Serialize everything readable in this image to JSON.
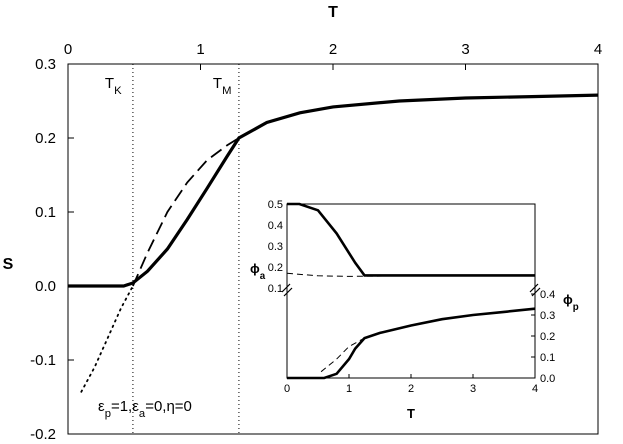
{
  "chart_data": [
    {
      "type": "line",
      "xlabel": "T",
      "ylabel": "S",
      "xlim": [
        0,
        4
      ],
      "ylim": [
        -0.2,
        0.3
      ],
      "x_ticks": [
        "0",
        "1",
        "2",
        "3",
        "4"
      ],
      "y_ticks": [
        "-0.2",
        "-0.1",
        "0.0",
        "0.1",
        "0.2",
        "0.3"
      ],
      "x_axis_position": "top",
      "grid": false,
      "markers": [
        {
          "label": "T",
          "subscript": "K",
          "x": 0.49
        },
        {
          "label": "T",
          "subscript": "M",
          "x": 1.29
        }
      ],
      "annotation": {
        "parts": [
          {
            "t": "ε",
            "sub": "p"
          },
          {
            "t": "=1,"
          },
          {
            "t": "ε",
            "sub": "a"
          },
          {
            "t": "=0,η=0"
          }
        ]
      },
      "series": [
        {
          "style": "solid-thick",
          "x": [
            0,
            0.2,
            0.42,
            0.49,
            0.6,
            0.75,
            0.9,
            1.05,
            1.2,
            1.29,
            1.5,
            1.75,
            2.0,
            2.5,
            3.0,
            3.5,
            4.0
          ],
          "y": [
            0.0,
            0.0,
            0.0,
            0.004,
            0.02,
            0.05,
            0.09,
            0.132,
            0.175,
            0.2,
            0.221,
            0.234,
            0.242,
            0.25,
            0.254,
            0.256,
            0.258
          ]
        },
        {
          "style": "dashed",
          "x": [
            0.49,
            0.6,
            0.75,
            0.9,
            1.05,
            1.2,
            1.29
          ],
          "y": [
            0.0,
            0.045,
            0.1,
            0.14,
            0.17,
            0.19,
            0.2
          ]
        },
        {
          "style": "dotted",
          "x": [
            0.1,
            0.2,
            0.3,
            0.4,
            0.49
          ],
          "y": [
            -0.143,
            -0.11,
            -0.07,
            -0.03,
            0.0
          ]
        }
      ]
    },
    {
      "type": "line",
      "xlabel": "T",
      "ylabel_top": {
        "t": "ϕ",
        "sub": "a"
      },
      "ylabel_bottom": {
        "t": "ϕ",
        "sub": "p"
      },
      "xlim": [
        0,
        4
      ],
      "x_ticks": [
        "0",
        "1",
        "2",
        "3",
        "4"
      ],
      "top_panel": {
        "ylim": [
          0.1,
          0.5
        ],
        "y_ticks": [
          "0.1",
          "0.2",
          "0.3",
          "0.4",
          "0.5"
        ],
        "series": [
          {
            "style": "solid-thick",
            "x": [
              0,
              0.2,
              0.5,
              0.8,
              1.1,
              1.25,
              2.0,
              3.0,
              4.0
            ],
            "y": [
              0.5,
              0.5,
              0.47,
              0.36,
              0.22,
              0.16,
              0.16,
              0.16,
              0.16
            ]
          },
          {
            "style": "dashed",
            "x": [
              0,
              0.5,
              1.0,
              1.25,
              2.0,
              4.0
            ],
            "y": [
              0.17,
              0.158,
              0.155,
              0.156,
              0.158,
              0.16
            ]
          }
        ]
      },
      "bottom_panel": {
        "ylim": [
          0,
          0.4
        ],
        "y_ticks": [
          "0.0",
          "0.1",
          "0.2",
          "0.3",
          "0.4"
        ],
        "y_axis_position": "right",
        "series": [
          {
            "style": "solid-thick",
            "x": [
              0,
              0.4,
              0.6,
              0.8,
              1.0,
              1.1,
              1.25,
              1.5,
              2.0,
              2.5,
              3.0,
              3.5,
              4.0
            ],
            "y": [
              0,
              0,
              0,
              0.02,
              0.09,
              0.14,
              0.19,
              0.215,
              0.25,
              0.28,
              0.3,
              0.315,
              0.33
            ]
          },
          {
            "style": "dashed",
            "x": [
              0.55,
              0.8,
              1.0,
              1.25
            ],
            "y": [
              0.03,
              0.09,
              0.15,
              0.19
            ]
          }
        ]
      }
    }
  ]
}
